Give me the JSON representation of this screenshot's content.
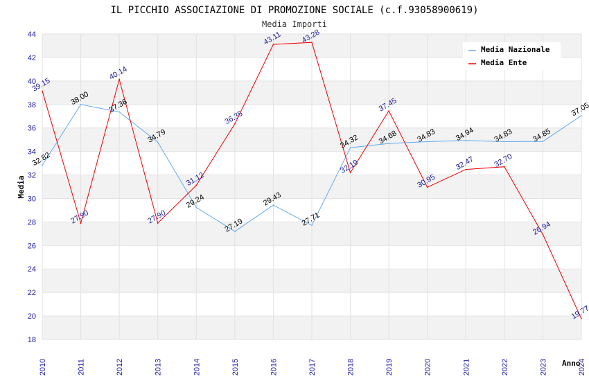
{
  "chart_data": {
    "type": "line",
    "title": "IL PICCHIO ASSOCIAZIONE DI PROMOZIONE SOCIALE (c.f.93058900619)",
    "subtitle": "Media Importi",
    "xlabel": "Anno",
    "ylabel": "Media",
    "ylim": [
      18,
      44
    ],
    "yticks": [
      "18",
      "20",
      "22",
      "24",
      "26",
      "28",
      "30",
      "32",
      "34",
      "36",
      "38",
      "40",
      "42",
      "44"
    ],
    "categories": [
      "2010",
      "2011",
      "2012",
      "2013",
      "2014",
      "2015",
      "2016",
      "2017",
      "2018",
      "2019",
      "2020",
      "2021",
      "2022",
      "2023",
      "2024"
    ],
    "grid": true,
    "legend_position": "top-right",
    "series": [
      {
        "name": "Media Nazionale",
        "color": "#66aaee",
        "label_color": "#000000",
        "values": [
          32.82,
          38.0,
          37.36,
          34.79,
          29.24,
          27.19,
          29.43,
          27.71,
          34.32,
          34.68,
          34.83,
          34.94,
          34.83,
          34.85,
          37.05
        ],
        "labels": [
          "32.82",
          "38.00",
          "37.36",
          "34.79",
          "29.24",
          "27.19",
          "29.43",
          "27.71",
          "34.32",
          "34.68",
          "34.83",
          "34.94",
          "34.83",
          "34.85",
          "37.05"
        ]
      },
      {
        "name": "Media Ente",
        "color": "#ee0000",
        "label_color": "#1a1a99",
        "values": [
          39.15,
          27.9,
          40.14,
          27.9,
          31.12,
          36.35,
          43.11,
          43.28,
          32.19,
          37.45,
          30.95,
          32.47,
          32.7,
          26.94,
          19.77
        ],
        "labels": [
          "39.15",
          "27.90",
          "40.14",
          "27.90",
          "31.12",
          "36.35",
          "43.11",
          "43.28",
          "32.19",
          "37.45",
          "30.95",
          "32.47",
          "32.70",
          "26.94",
          "19.77"
        ]
      }
    ]
  }
}
